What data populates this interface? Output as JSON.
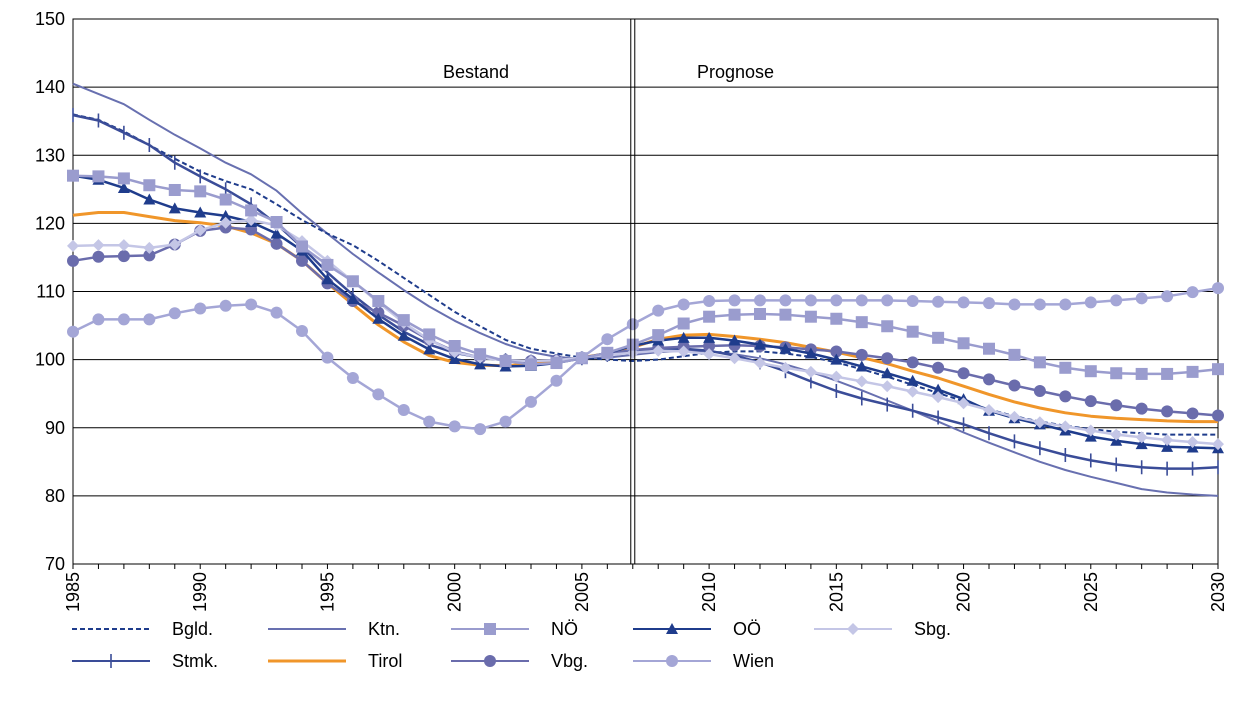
{
  "chart_data": {
    "type": "line",
    "x": [
      1985,
      1986,
      1987,
      1988,
      1989,
      1990,
      1991,
      1992,
      1993,
      1994,
      1995,
      1996,
      1997,
      1998,
      1999,
      2000,
      2001,
      2002,
      2003,
      2004,
      2005,
      2006,
      2007,
      2008,
      2009,
      2010,
      2011,
      2012,
      2013,
      2014,
      2015,
      2016,
      2017,
      2018,
      2019,
      2020,
      2021,
      2022,
      2023,
      2024,
      2025,
      2026,
      2027,
      2028,
      2029,
      2030
    ],
    "xlim": [
      1985,
      2030
    ],
    "ylim": [
      70,
      150
    ],
    "x_ticks": [
      "1985",
      "1990",
      "1995",
      "2000",
      "2005",
      "2010",
      "2015",
      "2020",
      "2025",
      "2030"
    ],
    "y_ticks": [
      "70",
      "80",
      "90",
      "100",
      "110",
      "120",
      "130",
      "140",
      "150"
    ],
    "grid": "horizontal",
    "divider_x": 2007,
    "annotations": [
      "Bestand",
      "Prognose"
    ],
    "legend_position": "bottom",
    "series": [
      {
        "name": "Bgld.",
        "color": "#1f3c8c",
        "dash": true,
        "marker": "none",
        "values": [
          136,
          135.2,
          133.5,
          131.5,
          129.5,
          127.6,
          126.2,
          125,
          122.8,
          120.5,
          118.5,
          116.8,
          114.5,
          112,
          109.5,
          107,
          104.9,
          102.9,
          101.6,
          100.9,
          100.3,
          100,
          99.8,
          100,
          100.5,
          101,
          101.2,
          101.2,
          100.9,
          100.4,
          99.6,
          98.6,
          97.5,
          96.3,
          95.1,
          93.9,
          92.7,
          91.7,
          90.9,
          90.3,
          89.8,
          89.4,
          89.2,
          89,
          89,
          89
        ]
      },
      {
        "name": "Ktn.",
        "color": "#6870b0",
        "dash": false,
        "marker": "none",
        "values": [
          140.5,
          139,
          137.5,
          135.2,
          133,
          131,
          128.9,
          127.2,
          124.8,
          121.5,
          118.5,
          115.5,
          112.8,
          110.2,
          107.8,
          105.7,
          103.9,
          102.3,
          101.1,
          100.4,
          100.1,
          100.3,
          100.7,
          101.1,
          101.3,
          101.2,
          100.8,
          100.2,
          99.3,
          98.2,
          96.9,
          95.5,
          94,
          92.5,
          90.9,
          89.3,
          87.8,
          86.4,
          85,
          83.8,
          82.8,
          81.9,
          81,
          80.5,
          80.2,
          80
        ]
      },
      {
        "name": "NÖ",
        "color": "#9a9cce",
        "dash": false,
        "marker": "square",
        "values": [
          127,
          126.9,
          126.6,
          125.6,
          124.9,
          124.7,
          123.5,
          121.9,
          120.2,
          116.6,
          113.9,
          111.5,
          108.6,
          105.8,
          103.7,
          102,
          100.8,
          99.8,
          99.3,
          99.5,
          100.2,
          101,
          102.2,
          103.6,
          105.3,
          106.3,
          106.6,
          106.7,
          106.6,
          106.3,
          106,
          105.5,
          104.9,
          104.1,
          103.2,
          102.4,
          101.6,
          100.7,
          99.6,
          98.8,
          98.3,
          98,
          97.9,
          97.9,
          98.2,
          98.6
        ]
      },
      {
        "name": "OÖ",
        "color": "#1f3c8c",
        "dash": false,
        "marker": "triangle",
        "values": [
          127,
          126.4,
          125.2,
          123.5,
          122.2,
          121.6,
          121.1,
          120.2,
          118.5,
          116,
          111.8,
          108.9,
          106,
          103.5,
          101.5,
          100.1,
          99.3,
          99,
          99.1,
          99.5,
          100.2,
          101,
          102,
          102.8,
          103.2,
          103.2,
          102.8,
          102.2,
          101.6,
          100.9,
          100,
          99,
          98,
          96.9,
          95.6,
          94.2,
          92.5,
          91.4,
          90.5,
          89.6,
          88.7,
          88.1,
          87.6,
          87.2,
          87.1,
          87
        ]
      },
      {
        "name": "Sbg.",
        "color": "#c4c6e6",
        "dash": false,
        "marker": "diamond",
        "values": [
          116.7,
          116.8,
          116.8,
          116.4,
          116.9,
          119,
          120.1,
          120.5,
          119.7,
          117.4,
          114.5,
          111.5,
          108.4,
          105.4,
          102.9,
          101.1,
          100.3,
          99.9,
          99.8,
          99.9,
          100.3,
          100.7,
          101,
          101.3,
          101.2,
          100.8,
          100.2,
          99.5,
          98.8,
          98.2,
          97.5,
          96.8,
          96.1,
          95.3,
          94.5,
          93.6,
          92.6,
          91.6,
          90.8,
          90.2,
          89.6,
          89,
          88.6,
          88.2,
          87.9,
          87.6
        ]
      },
      {
        "name": "Stmk.",
        "color": "#3a4c98",
        "dash": false,
        "marker": "plus",
        "values": [
          135.9,
          135.1,
          133.3,
          131.5,
          128.9,
          126.9,
          125,
          122.8,
          119.9,
          116.5,
          112.8,
          109.5,
          106.6,
          104.1,
          102.2,
          101,
          100.3,
          99.9,
          99.7,
          99.8,
          100.2,
          100.7,
          101.2,
          101.6,
          101.6,
          101.3,
          100.6,
          99.6,
          98.3,
          96.8,
          95.4,
          94.3,
          93.4,
          92.5,
          91.5,
          90.5,
          89.2,
          88,
          87,
          86,
          85.2,
          84.6,
          84.2,
          84,
          84,
          84.2
        ]
      },
      {
        "name": "Tirol",
        "color": "#f0962a",
        "dash": false,
        "marker": "none",
        "values": [
          121.2,
          121.6,
          121.6,
          121,
          120.4,
          120.1,
          119.6,
          118.6,
          117,
          114.5,
          111.2,
          108.1,
          105.1,
          102.6,
          100.6,
          99.6,
          99.2,
          99.1,
          99.4,
          99.8,
          100.3,
          100.9,
          101.8,
          103,
          103.6,
          103.7,
          103.4,
          103,
          102.5,
          101.8,
          101.1,
          100.3,
          99.4,
          98.3,
          97.3,
          96.1,
          94.9,
          93.8,
          92.9,
          92.2,
          91.7,
          91.4,
          91.2,
          91,
          90.9,
          90.9
        ]
      },
      {
        "name": "Vbg.",
        "color": "#6a6cac",
        "dash": false,
        "marker": "circle",
        "values": [
          114.5,
          115.1,
          115.2,
          115.3,
          116.9,
          118.9,
          119.4,
          119.1,
          117,
          114.5,
          111.2,
          108.6,
          106.9,
          105,
          102.9,
          101.2,
          100.3,
          99.9,
          99.8,
          99.9,
          100.3,
          100.9,
          101.4,
          101.7,
          101.9,
          102,
          102.1,
          102,
          101.8,
          101.5,
          101.2,
          100.7,
          100.2,
          99.6,
          98.8,
          98,
          97.1,
          96.2,
          95.4,
          94.6,
          93.9,
          93.3,
          92.8,
          92.4,
          92.1,
          91.8
        ]
      },
      {
        "name": "Wien",
        "color": "#a4a6d6",
        "dash": false,
        "marker": "circle",
        "values": [
          104.1,
          105.9,
          105.9,
          105.9,
          106.8,
          107.5,
          107.9,
          108.1,
          106.9,
          104.2,
          100.3,
          97.3,
          94.9,
          92.6,
          90.9,
          90.2,
          89.8,
          90.9,
          93.8,
          96.9,
          100.3,
          103,
          105.2,
          107.2,
          108.1,
          108.6,
          108.7,
          108.7,
          108.7,
          108.7,
          108.7,
          108.7,
          108.7,
          108.6,
          108.5,
          108.4,
          108.3,
          108.1,
          108.1,
          108.1,
          108.4,
          108.7,
          109,
          109.3,
          109.9,
          110.5
        ]
      }
    ]
  }
}
